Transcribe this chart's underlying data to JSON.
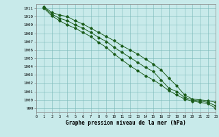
{
  "bg_color": "#c8eaea",
  "grid_color": "#7ab8b8",
  "line_color": "#1a5c1a",
  "xlabel": "Graphe pression niveau de la mer (hPa)",
  "ylim": [
    998.5,
    1011.5
  ],
  "xlim": [
    0,
    23
  ],
  "yticks": [
    999,
    1000,
    1001,
    1002,
    1003,
    1004,
    1005,
    1006,
    1007,
    1008,
    1009,
    1010,
    1011
  ],
  "xticks": [
    0,
    1,
    2,
    3,
    4,
    5,
    6,
    7,
    8,
    9,
    10,
    11,
    12,
    13,
    14,
    15,
    16,
    17,
    18,
    19,
    20,
    21,
    22,
    23
  ],
  "hours": [
    1,
    2,
    3,
    4,
    5,
    6,
    7,
    8,
    9,
    10,
    11,
    12,
    13,
    14,
    15,
    16,
    17,
    18,
    19,
    20,
    21,
    22,
    23
  ],
  "line1": [
    1011.2,
    1010.5,
    1010.2,
    1010.0,
    1009.5,
    1009.1,
    1008.6,
    1008.1,
    1007.6,
    1007.1,
    1006.5,
    1006.0,
    1005.5,
    1004.9,
    1004.3,
    1003.6,
    1002.6,
    1001.7,
    1000.6,
    1000.1,
    1000.0,
    999.9,
    999.7
  ],
  "line2": [
    1011.1,
    1010.3,
    1009.8,
    1009.5,
    1009.0,
    1008.6,
    1008.1,
    1007.5,
    1007.0,
    1006.3,
    1005.7,
    1005.1,
    1004.5,
    1003.9,
    1003.4,
    1002.4,
    1001.4,
    1001.0,
    1000.3,
    1000.0,
    999.85,
    999.7,
    999.3
  ],
  "line3": [
    1011.0,
    1010.1,
    1009.5,
    1009.0,
    1008.6,
    1008.1,
    1007.6,
    1006.9,
    1006.3,
    1005.5,
    1004.8,
    1004.1,
    1003.5,
    1002.9,
    1002.4,
    1001.8,
    1001.1,
    1000.6,
    1000.1,
    999.85,
    999.7,
    999.55,
    999.0
  ]
}
